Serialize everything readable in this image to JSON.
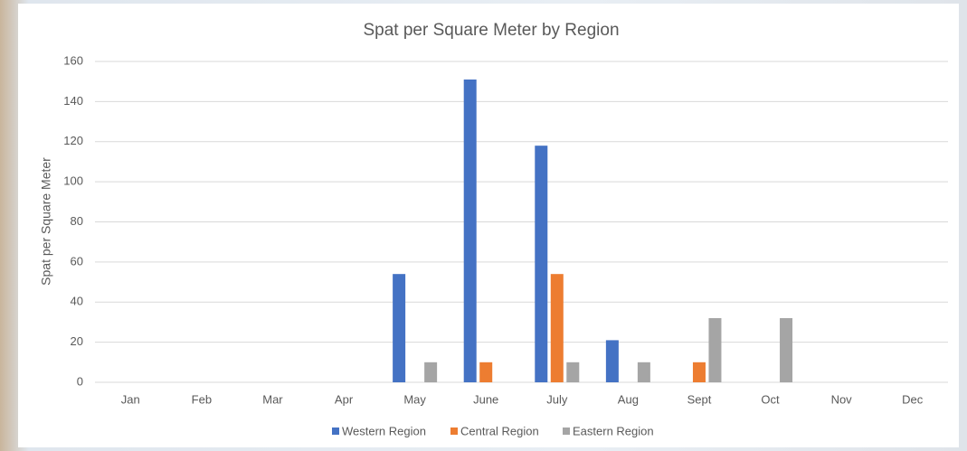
{
  "chart_data": {
    "type": "bar",
    "title": "Spat per Square Meter by Region",
    "y_label": "Spat per Square Meter",
    "categories": [
      "Jan",
      "Feb",
      "Mar",
      "Apr",
      "May",
      "June",
      "July",
      "Aug",
      "Sept",
      "Oct",
      "Nov",
      "Dec"
    ],
    "series": [
      {
        "name": "Western Region",
        "color": "#4472c4",
        "values": [
          0,
          0,
          0,
          0,
          54,
          151,
          118,
          21,
          0,
          0,
          0,
          0
        ]
      },
      {
        "name": "Central Region",
        "color": "#ed7d31",
        "values": [
          0,
          0,
          0,
          0,
          0,
          10,
          54,
          0,
          10,
          0,
          0,
          0
        ]
      },
      {
        "name": "Eastern Region",
        "color": "#a5a5a5",
        "values": [
          0,
          0,
          0,
          0,
          10,
          0,
          10,
          10,
          32,
          32,
          0,
          0
        ]
      }
    ],
    "ylim": [
      0,
      160
    ],
    "yticks": [
      0,
      20,
      40,
      60,
      80,
      100,
      120,
      140,
      160
    ],
    "grid": true,
    "legend": "bottom"
  }
}
